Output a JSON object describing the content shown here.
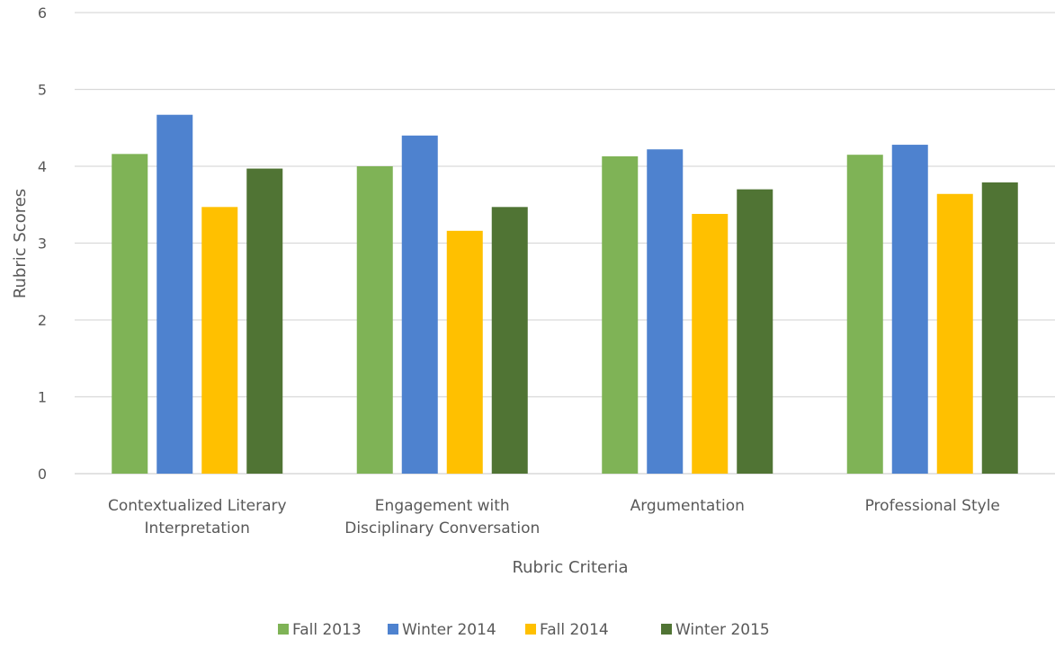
{
  "chart_data": {
    "type": "bar",
    "xlabel": "Rubric Criteria",
    "ylabel": "Rubric Scores",
    "ylim": [
      0,
      6
    ],
    "yticks": [
      0,
      1,
      2,
      3,
      4,
      5,
      6
    ],
    "grid": true,
    "legend_position": "bottom",
    "categories": [
      [
        "Contextualized Literary",
        "Interpretation"
      ],
      [
        "Engagement with",
        "Disciplinary Conversation"
      ],
      [
        "Argumentation"
      ],
      [
        "Professional Style"
      ]
    ],
    "series": [
      {
        "name": "Fall 2013",
        "color": "#7FB356",
        "values": [
          4.16,
          4.0,
          4.13,
          4.15
        ]
      },
      {
        "name": "Winter 2014",
        "color": "#4E82CF",
        "values": [
          4.67,
          4.4,
          4.22,
          4.28
        ]
      },
      {
        "name": "Fall 2014",
        "color": "#FFC000",
        "values": [
          3.47,
          3.16,
          3.38,
          3.64
        ]
      },
      {
        "name": "Winter 2015",
        "color": "#507434",
        "values": [
          3.97,
          3.47,
          3.7,
          3.79
        ]
      }
    ]
  }
}
